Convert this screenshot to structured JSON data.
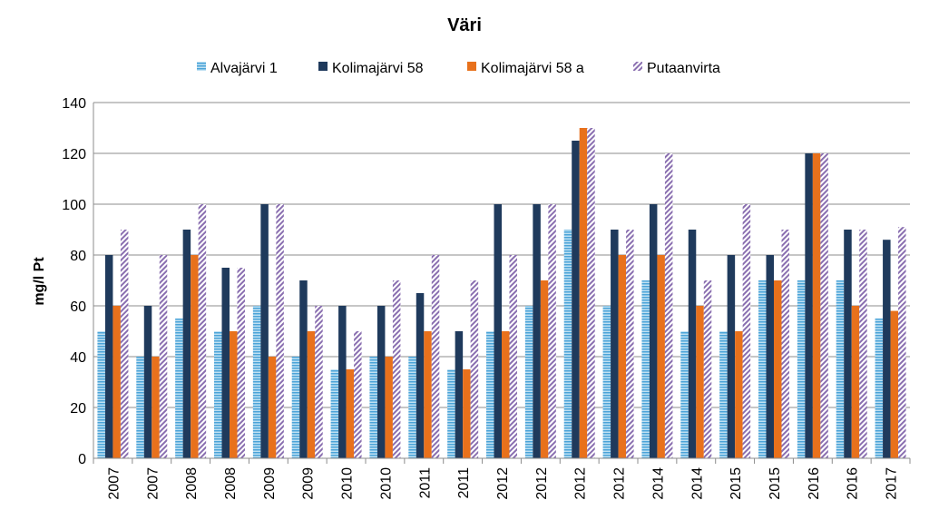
{
  "chart_data": {
    "type": "bar",
    "title": "Väri",
    "ylabel": "mg/l Pt",
    "xlabel": "",
    "ylim": [
      0,
      140
    ],
    "yticks": [
      0,
      20,
      40,
      60,
      80,
      100,
      120,
      140
    ],
    "grid": true,
    "legend_position": "top",
    "categories": [
      "2007",
      "2007",
      "2008",
      "2008",
      "2009",
      "2009",
      "2010",
      "2010",
      "2011",
      "2011",
      "2012",
      "2012",
      "2012",
      "2012",
      "2014",
      "2014",
      "2015",
      "2015",
      "2016",
      "2016",
      "2017"
    ],
    "series": [
      {
        "name": "Alvajärvi 1",
        "color": "#4aa3d8",
        "pattern": "horizontal-stripes",
        "values": [
          50,
          40,
          55,
          50,
          60,
          40,
          35,
          40,
          40,
          35,
          50,
          60,
          90,
          60,
          70,
          50,
          50,
          70,
          70,
          70,
          55
        ]
      },
      {
        "name": "Kolimajärvi 58",
        "color": "#1f3a5c",
        "pattern": "solid",
        "values": [
          80,
          60,
          90,
          75,
          100,
          70,
          60,
          60,
          65,
          50,
          100,
          100,
          125,
          90,
          100,
          90,
          80,
          80,
          120,
          90,
          86
        ]
      },
      {
        "name": "Kolimajärvi 58 a",
        "color": "#e8711c",
        "pattern": "solid",
        "values": [
          60,
          40,
          80,
          50,
          40,
          50,
          35,
          40,
          50,
          35,
          50,
          70,
          130,
          80,
          80,
          60,
          50,
          70,
          120,
          60,
          58
        ]
      },
      {
        "name": "Putaanvirta",
        "color": "#8a6fb0",
        "pattern": "diagonal-stripes",
        "values": [
          90,
          80,
          100,
          75,
          100,
          60,
          50,
          70,
          80,
          70,
          80,
          100,
          130,
          90,
          120,
          70,
          100,
          90,
          120,
          90,
          91
        ]
      }
    ]
  }
}
